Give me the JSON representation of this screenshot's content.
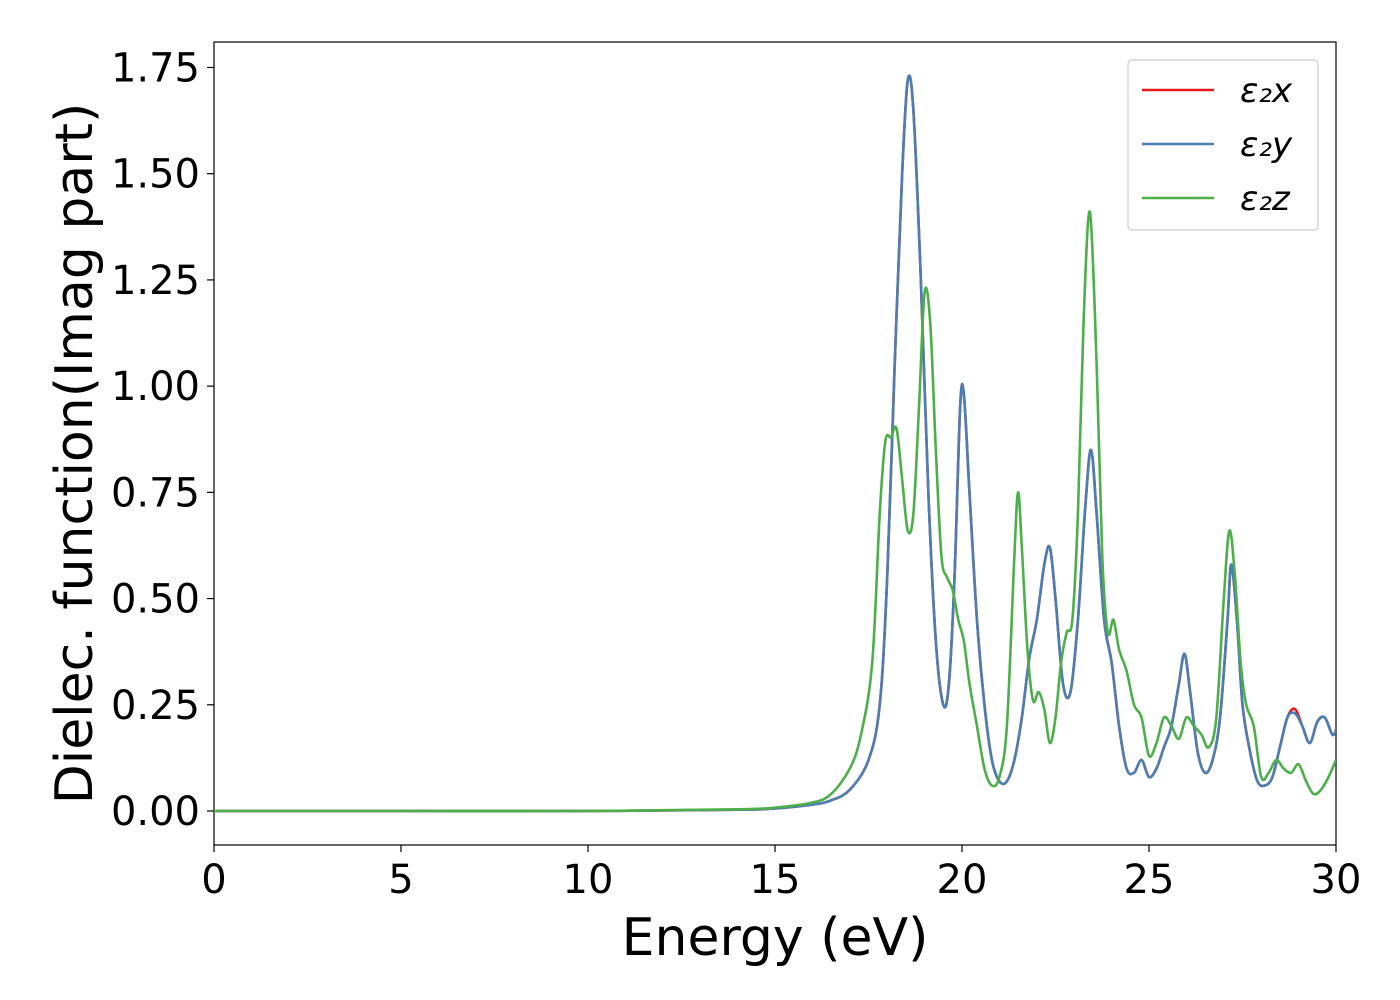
{
  "chart_data": {
    "type": "line",
    "title": "",
    "xlabel": "Energy (eV)",
    "ylabel": "Dielec. function(Imag part)",
    "xlim": [
      0,
      30
    ],
    "ylim": [
      -0.08,
      1.81
    ],
    "xticks": [
      0,
      5,
      10,
      15,
      20,
      25,
      30
    ],
    "xtick_labels": [
      "0",
      "5",
      "10",
      "15",
      "20",
      "25",
      "30"
    ],
    "yticks": [
      0,
      0.25,
      0.5,
      0.75,
      1.0,
      1.25,
      1.5,
      1.75
    ],
    "ytick_labels": [
      "0.00",
      "0.25",
      "0.50",
      "0.75",
      "1.00",
      "1.25",
      "1.50",
      "1.75"
    ],
    "grid": false,
    "legend_position": "top-right",
    "series": [
      {
        "name": "ε₂x",
        "color": "#e41a1c",
        "x": [
          0,
          5,
          10,
          14,
          15,
          16,
          16.5,
          17,
          17.5,
          17.8,
          18.0,
          18.2,
          18.4,
          18.55,
          18.7,
          18.9,
          19.1,
          19.3,
          19.5,
          19.65,
          19.8,
          19.95,
          20.05,
          20.2,
          20.4,
          20.6,
          20.8,
          21.0,
          21.2,
          21.4,
          21.6,
          21.8,
          22.0,
          22.2,
          22.35,
          22.5,
          22.7,
          22.9,
          23.1,
          23.3,
          23.45,
          23.6,
          23.8,
          24.0,
          24.2,
          24.4,
          24.6,
          24.8,
          25.0,
          25.2,
          25.4,
          25.6,
          25.8,
          25.95,
          26.1,
          26.3,
          26.5,
          26.7,
          26.9,
          27.1,
          27.2,
          27.35,
          27.5,
          27.7,
          27.9,
          28.1,
          28.3,
          28.5,
          28.7,
          28.9,
          29.1,
          29.3,
          29.5,
          29.7,
          29.9,
          30.0
        ],
        "y": [
          0.0,
          0.0,
          0.0,
          0.003,
          0.006,
          0.015,
          0.025,
          0.05,
          0.12,
          0.25,
          0.55,
          1.05,
          1.5,
          1.72,
          1.65,
          1.25,
          0.75,
          0.4,
          0.25,
          0.3,
          0.55,
          0.95,
          0.98,
          0.75,
          0.45,
          0.25,
          0.12,
          0.07,
          0.07,
          0.12,
          0.22,
          0.36,
          0.45,
          0.58,
          0.62,
          0.5,
          0.3,
          0.28,
          0.45,
          0.72,
          0.85,
          0.7,
          0.45,
          0.35,
          0.2,
          0.1,
          0.09,
          0.12,
          0.08,
          0.1,
          0.15,
          0.2,
          0.3,
          0.37,
          0.28,
          0.14,
          0.09,
          0.12,
          0.22,
          0.45,
          0.58,
          0.45,
          0.25,
          0.14,
          0.07,
          0.06,
          0.08,
          0.15,
          0.22,
          0.24,
          0.2,
          0.16,
          0.21,
          0.22,
          0.18,
          0.19
        ]
      },
      {
        "name": "ε₂y",
        "color": "#4a7fb5",
        "x": [
          0,
          5,
          10,
          14,
          15,
          16,
          16.5,
          17,
          17.5,
          17.8,
          18.0,
          18.2,
          18.4,
          18.55,
          18.7,
          18.9,
          19.1,
          19.3,
          19.5,
          19.65,
          19.8,
          19.95,
          20.05,
          20.2,
          20.4,
          20.6,
          20.8,
          21.0,
          21.2,
          21.4,
          21.6,
          21.8,
          22.0,
          22.2,
          22.35,
          22.5,
          22.7,
          22.9,
          23.1,
          23.3,
          23.45,
          23.6,
          23.8,
          24.0,
          24.2,
          24.4,
          24.6,
          24.8,
          25.0,
          25.2,
          25.4,
          25.6,
          25.8,
          25.95,
          26.1,
          26.3,
          26.5,
          26.7,
          26.9,
          27.1,
          27.2,
          27.35,
          27.5,
          27.7,
          27.9,
          28.1,
          28.3,
          28.5,
          28.7,
          28.9,
          29.1,
          29.3,
          29.5,
          29.7,
          29.9,
          30.0
        ],
        "y": [
          0.0,
          0.0,
          0.0,
          0.003,
          0.006,
          0.015,
          0.025,
          0.05,
          0.12,
          0.25,
          0.55,
          1.05,
          1.5,
          1.72,
          1.65,
          1.25,
          0.75,
          0.4,
          0.25,
          0.3,
          0.55,
          0.95,
          0.98,
          0.75,
          0.45,
          0.25,
          0.12,
          0.07,
          0.07,
          0.12,
          0.22,
          0.36,
          0.45,
          0.58,
          0.62,
          0.5,
          0.3,
          0.28,
          0.45,
          0.72,
          0.85,
          0.7,
          0.45,
          0.35,
          0.2,
          0.1,
          0.09,
          0.12,
          0.08,
          0.1,
          0.15,
          0.2,
          0.3,
          0.37,
          0.28,
          0.14,
          0.09,
          0.12,
          0.22,
          0.45,
          0.58,
          0.45,
          0.25,
          0.14,
          0.07,
          0.06,
          0.08,
          0.15,
          0.22,
          0.23,
          0.2,
          0.16,
          0.21,
          0.22,
          0.18,
          0.19
        ]
      },
      {
        "name": "ε₂z",
        "color": "#4daf4a",
        "x": [
          0,
          5,
          10,
          14,
          15,
          16,
          16.5,
          17,
          17.3,
          17.6,
          17.8,
          17.95,
          18.1,
          18.25,
          18.4,
          18.55,
          18.7,
          18.85,
          19.0,
          19.15,
          19.3,
          19.45,
          19.6,
          19.75,
          19.9,
          20.05,
          20.2,
          20.4,
          20.6,
          20.8,
          21.0,
          21.2,
          21.4,
          21.5,
          21.6,
          21.75,
          21.9,
          22.05,
          22.2,
          22.35,
          22.5,
          22.65,
          22.8,
          22.95,
          23.1,
          23.25,
          23.42,
          23.6,
          23.75,
          23.9,
          24.05,
          24.2,
          24.4,
          24.6,
          24.8,
          25.0,
          25.2,
          25.4,
          25.6,
          25.8,
          26.0,
          26.2,
          26.4,
          26.6,
          26.8,
          27.0,
          27.15,
          27.3,
          27.45,
          27.6,
          27.8,
          28.0,
          28.2,
          28.4,
          28.6,
          28.8,
          29.0,
          29.2,
          29.4,
          29.6,
          29.8,
          30.0
        ],
        "y": [
          0.0,
          0.0,
          0.0,
          0.004,
          0.008,
          0.02,
          0.04,
          0.1,
          0.18,
          0.35,
          0.7,
          0.87,
          0.88,
          0.9,
          0.78,
          0.66,
          0.7,
          0.95,
          1.22,
          1.15,
          0.85,
          0.6,
          0.55,
          0.52,
          0.45,
          0.4,
          0.3,
          0.2,
          0.1,
          0.06,
          0.08,
          0.2,
          0.6,
          0.75,
          0.62,
          0.38,
          0.26,
          0.28,
          0.24,
          0.16,
          0.22,
          0.35,
          0.42,
          0.45,
          0.7,
          1.15,
          1.41,
          1.05,
          0.6,
          0.42,
          0.45,
          0.38,
          0.33,
          0.25,
          0.22,
          0.13,
          0.16,
          0.22,
          0.2,
          0.17,
          0.22,
          0.2,
          0.18,
          0.15,
          0.22,
          0.5,
          0.66,
          0.55,
          0.35,
          0.25,
          0.2,
          0.08,
          0.09,
          0.12,
          0.1,
          0.09,
          0.11,
          0.07,
          0.04,
          0.05,
          0.08,
          0.12
        ]
      }
    ]
  }
}
